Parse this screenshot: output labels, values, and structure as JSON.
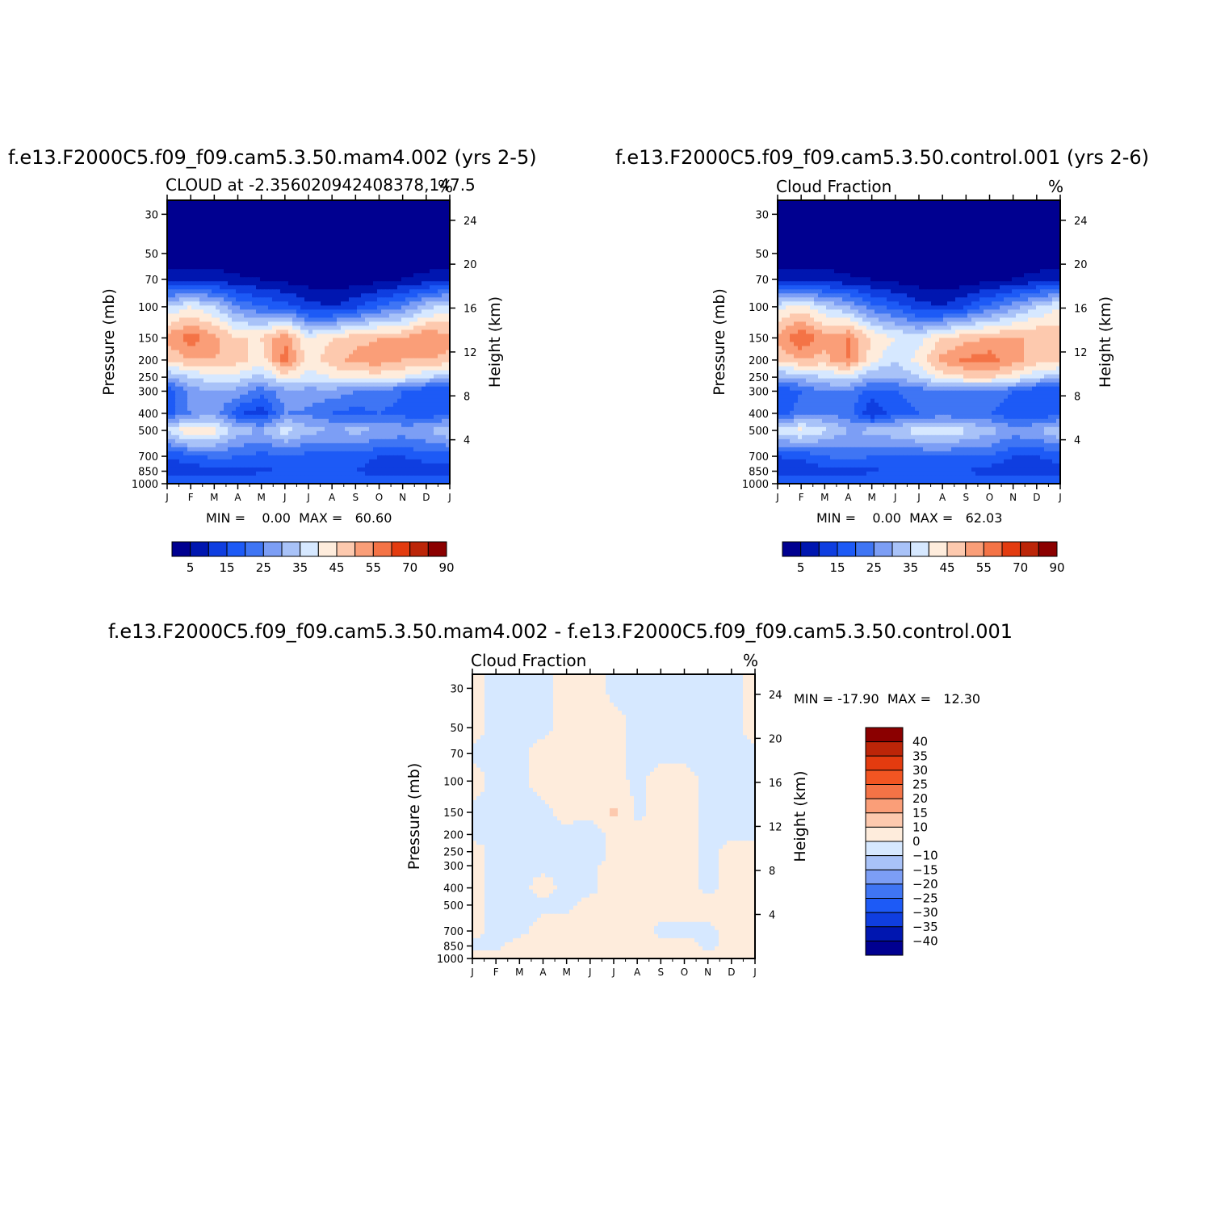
{
  "chart_data": [
    {
      "type": "heatmap",
      "title": "f.e13.F2000C5.f09_f09.cam5.3.50.mam4.002 (yrs 2-5)",
      "subtitle": "CLOUD at -2.356020942408378,147.5",
      "units": "%",
      "ylabel": "Pressure (mb)",
      "y2label": "Height (km)",
      "x": [
        "J",
        "F",
        "M",
        "A",
        "M",
        "J",
        "J",
        "A",
        "S",
        "O",
        "N",
        "D",
        "J"
      ],
      "y_ticks": [
        30,
        50,
        70,
        100,
        150,
        200,
        250,
        300,
        400,
        500,
        700,
        850,
        1000
      ],
      "y2_ticks": [
        24,
        20,
        16,
        12,
        8,
        4
      ],
      "ylim": [
        1000,
        25
      ],
      "stats": "MIN =    0.00  MAX =   60.60",
      "colorbar_labels": [
        "5",
        "15",
        "25",
        "35",
        "45",
        "55",
        "70",
        "90"
      ],
      "levels": [
        5,
        10,
        15,
        20,
        25,
        30,
        35,
        40,
        45,
        50,
        55,
        60,
        70,
        80,
        90
      ],
      "colors": [
        "#000090",
        "#0016b0",
        "#0f3ee0",
        "#1d5af6",
        "#3f75f4",
        "#7c9ef5",
        "#a8c2f8",
        "#d6e8ff",
        "#feecdc",
        "#fdc9ae",
        "#fa9e78",
        "#f47346",
        "#e33b0f",
        "#bc2508",
        "#8b0000"
      ],
      "rows_pressure": [
        30,
        50,
        70,
        100,
        150,
        200,
        250,
        300,
        400,
        500,
        700,
        850,
        1000
      ],
      "values": [
        [
          0,
          0,
          0,
          0,
          0,
          0,
          0,
          0,
          0,
          0,
          0,
          0,
          0
        ],
        [
          0,
          0,
          0,
          0,
          0,
          0,
          0,
          0,
          0,
          0,
          0,
          0,
          0
        ],
        [
          9,
          9,
          8,
          6,
          5,
          3,
          2,
          1,
          2,
          3,
          5,
          7,
          9
        ],
        [
          35,
          40,
          35,
          25,
          20,
          18,
          12,
          10,
          14,
          20,
          25,
          33,
          38
        ],
        [
          52,
          58,
          52,
          45,
          45,
          55,
          40,
          45,
          48,
          50,
          50,
          55,
          52
        ],
        [
          45,
          50,
          50,
          47,
          42,
          57,
          42,
          48,
          52,
          53,
          50,
          50,
          48
        ],
        [
          30,
          35,
          38,
          38,
          33,
          42,
          38,
          40,
          42,
          42,
          40,
          35,
          33
        ],
        [
          15,
          28,
          30,
          28,
          22,
          28,
          28,
          28,
          25,
          24,
          20,
          15,
          15
        ],
        [
          18,
          25,
          28,
          16,
          12,
          25,
          24,
          20,
          18,
          20,
          18,
          15,
          20
        ],
        [
          36,
          47,
          42,
          33,
          30,
          38,
          32,
          30,
          32,
          30,
          28,
          30,
          35
        ],
        [
          15,
          18,
          22,
          20,
          18,
          20,
          18,
          18,
          18,
          15,
          15,
          18,
          18
        ],
        [
          12,
          12,
          13,
          13,
          14,
          15,
          15,
          15,
          15,
          12,
          10,
          10,
          13
        ],
        [
          20,
          20,
          20,
          20,
          20,
          20,
          20,
          20,
          20,
          20,
          20,
          20,
          20
        ]
      ]
    },
    {
      "type": "heatmap",
      "title": "f.e13.F2000C5.f09_f09.cam5.3.50.control.001 (yrs 2-6)",
      "subtitle": "Cloud Fraction",
      "units": "%",
      "ylabel": "Pressure (mb)",
      "y2label": "Height (km)",
      "x": [
        "J",
        "F",
        "M",
        "A",
        "M",
        "J",
        "J",
        "A",
        "S",
        "O",
        "N",
        "D",
        "J"
      ],
      "y_ticks": [
        30,
        50,
        70,
        100,
        150,
        200,
        250,
        300,
        400,
        500,
        700,
        850,
        1000
      ],
      "y2_ticks": [
        24,
        20,
        16,
        12,
        8,
        4
      ],
      "ylim": [
        1000,
        25
      ],
      "stats": "MIN =    0.00  MAX =   62.03",
      "colorbar_labels": [
        "5",
        "15",
        "25",
        "35",
        "45",
        "55",
        "70",
        "90"
      ],
      "levels": [
        5,
        10,
        15,
        20,
        25,
        30,
        35,
        40,
        45,
        50,
        55,
        60,
        70,
        80,
        90
      ],
      "colors": [
        "#000090",
        "#0016b0",
        "#0f3ee0",
        "#1d5af6",
        "#3f75f4",
        "#7c9ef5",
        "#a8c2f8",
        "#d6e8ff",
        "#feecdc",
        "#fdc9ae",
        "#fa9e78",
        "#f47346",
        "#e33b0f",
        "#bc2508",
        "#8b0000"
      ],
      "rows_pressure": [
        30,
        50,
        70,
        100,
        150,
        200,
        250,
        300,
        400,
        500,
        700,
        850,
        1000
      ],
      "values": [
        [
          0,
          0,
          0,
          0,
          0,
          0,
          0,
          0,
          0,
          0,
          0,
          0,
          0
        ],
        [
          0,
          0,
          0,
          0,
          0,
          0,
          0,
          0,
          0,
          0,
          0,
          0,
          0
        ],
        [
          9,
          9,
          8,
          6,
          5,
          3,
          2,
          1,
          2,
          3,
          5,
          7,
          9
        ],
        [
          38,
          42,
          35,
          30,
          22,
          18,
          12,
          10,
          15,
          22,
          28,
          35,
          40
        ],
        [
          52,
          60,
          52,
          55,
          45,
          40,
          38,
          45,
          48,
          50,
          50,
          50,
          48
        ],
        [
          45,
          50,
          48,
          55,
          42,
          35,
          42,
          52,
          56,
          58,
          52,
          48,
          46
        ],
        [
          30,
          32,
          35,
          38,
          30,
          30,
          35,
          42,
          45,
          45,
          42,
          35,
          33
        ],
        [
          15,
          20,
          25,
          24,
          18,
          20,
          22,
          24,
          24,
          24,
          20,
          15,
          15
        ],
        [
          18,
          22,
          25,
          22,
          10,
          18,
          20,
          22,
          20,
          20,
          16,
          15,
          18
        ],
        [
          38,
          42,
          36,
          30,
          32,
          34,
          38,
          40,
          36,
          32,
          28,
          30,
          35
        ],
        [
          15,
          16,
          20,
          22,
          20,
          20,
          20,
          20,
          20,
          20,
          15,
          15,
          18
        ],
        [
          12,
          12,
          13,
          13,
          14,
          15,
          15,
          15,
          15,
          12,
          10,
          10,
          13
        ],
        [
          20,
          20,
          20,
          20,
          20,
          20,
          20,
          20,
          20,
          20,
          20,
          20,
          20
        ]
      ]
    },
    {
      "type": "heatmap",
      "title": "f.e13.F2000C5.f09_f09.cam5.3.50.mam4.002 - f.e13.F2000C5.f09_f09.cam5.3.50.control.001",
      "subtitle": "Cloud Fraction",
      "units": "%",
      "ylabel": "Pressure (mb)",
      "y2label": "Height (km)",
      "x": [
        "J",
        "F",
        "M",
        "A",
        "M",
        "J",
        "J",
        "A",
        "S",
        "O",
        "N",
        "D",
        "J"
      ],
      "y_ticks": [
        30,
        50,
        70,
        100,
        150,
        200,
        250,
        300,
        400,
        500,
        700,
        850,
        1000
      ],
      "y2_ticks": [
        24,
        20,
        16,
        12,
        8,
        4
      ],
      "ylim": [
        1000,
        25
      ],
      "stats": "MIN = -17.90  MAX =   12.30",
      "colorbar_labels": [
        "40",
        "35",
        "30",
        "25",
        "20",
        "15",
        "10",
        "0",
        "-10",
        "-15",
        "-20",
        "-25",
        "-30",
        "-35",
        "-40"
      ],
      "levels": [
        -40,
        -35,
        -30,
        -25,
        -20,
        -15,
        -10,
        0,
        10,
        15,
        20,
        25,
        30,
        35,
        40
      ],
      "colors": [
        "#8b0000",
        "#bc2508",
        "#e33b0f",
        "#f25522",
        "#f47346",
        "#fa9e78",
        "#fdc9ae",
        "#feecdc",
        "#d6e8ff",
        "#a8c2f8",
        "#7c9ef5",
        "#3f75f4",
        "#1d5af6",
        "#0f3ee0",
        "#0016b0",
        "#000090"
      ],
      "rows_pressure": [
        30,
        50,
        70,
        100,
        150,
        200,
        250,
        300,
        400,
        500,
        700,
        850,
        1000
      ],
      "values": [
        [
          -3,
          2,
          2,
          2,
          -3,
          -3,
          2,
          2,
          2,
          2,
          2,
          2,
          -3
        ],
        [
          -3,
          2,
          2,
          2,
          -3,
          -3,
          -3,
          2,
          2,
          2,
          2,
          2,
          -3
        ],
        [
          2,
          2,
          2,
          -3,
          -3,
          -3,
          -3,
          2,
          2,
          2,
          2,
          2,
          2
        ],
        [
          -3,
          2,
          2,
          -3,
          -3,
          -3,
          -3,
          2,
          -3,
          -3,
          2,
          2,
          2
        ],
        [
          2,
          2,
          2,
          2,
          -3,
          -3,
          -12,
          2,
          -3,
          -3,
          2,
          2,
          2
        ],
        [
          2,
          2,
          2,
          2,
          2,
          7,
          -3,
          -3,
          -3,
          -3,
          2,
          2,
          2
        ],
        [
          -3,
          2,
          2,
          2,
          2,
          7,
          -3,
          -3,
          -3,
          -3,
          2,
          -3,
          -3
        ],
        [
          -3,
          2,
          2,
          2,
          2,
          2,
          -3,
          -3,
          -3,
          -3,
          2,
          -3,
          -3
        ],
        [
          -3,
          2,
          2,
          -3,
          2,
          2,
          -3,
          -3,
          -3,
          -3,
          2,
          -3,
          -3
        ],
        [
          -3,
          2,
          2,
          2,
          2,
          -3,
          -3,
          -3,
          -3,
          -3,
          -3,
          -3,
          -3
        ],
        [
          -3,
          2,
          2,
          -3,
          -3,
          -3,
          -3,
          -3,
          2,
          2,
          2,
          -3,
          -3
        ],
        [
          2,
          2,
          -3,
          -3,
          -3,
          -3,
          -3,
          -3,
          -3,
          -3,
          2,
          -3,
          -3
        ],
        [
          -3,
          -3,
          -3,
          -3,
          -3,
          -3,
          -3,
          -3,
          -3,
          -3,
          -3,
          -3,
          -3
        ]
      ]
    }
  ]
}
